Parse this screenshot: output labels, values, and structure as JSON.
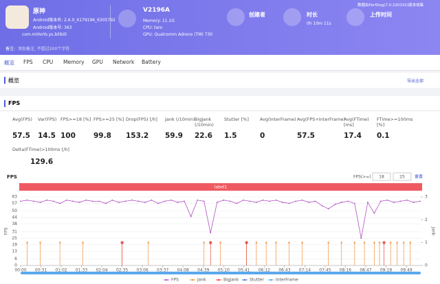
{
  "header": {
    "app_name": "原神",
    "version_name": "Android版本名: 2.6.0_6179196_6305792",
    "version_code": "Android版本号: 363",
    "package": "com.miHoYo.ys.bilibili",
    "device": "V2196A",
    "memory": "Memory: 11.1G",
    "cpu": "CPU: taro",
    "gpu": "GPU: Qualcomm Adreno (TM) 730",
    "creator_label": "创建者",
    "duration_label": "时长",
    "duration": "0h 10m 11s",
    "upload_label": "上传时间",
    "source_note": "数据由PerfDog(7.0.220332)版本收集",
    "note_label": "备注:",
    "note_placeholder": "添加备注, 不超过200个字符"
  },
  "tabs": [
    "概览",
    "FPS",
    "CPU",
    "Memory",
    "GPU",
    "Network",
    "Battery"
  ],
  "overview": {
    "title": "概览",
    "export": "导出全部"
  },
  "fps_section": {
    "title": "FPS",
    "stats": [
      {
        "label": "Avg(FPS)",
        "value": 57.5
      },
      {
        "label": "Var(FPS)",
        "value": 14.5
      },
      {
        "label": "FPS>=18 [%]",
        "value": 100
      },
      {
        "label": "FPS>=25 [%]",
        "value": 99.8
      },
      {
        "label": "Drop(FPS) [/h]",
        "value": 153.2
      },
      {
        "label": "Jank (/10min)",
        "value": 59.9
      },
      {
        "label": "BigJank (/10min)",
        "value": 22.6
      },
      {
        "label": "Stutter [%]",
        "value": 1.5
      },
      {
        "label": "Avg(InterFrame)",
        "value": 0
      },
      {
        "label": "Avg(FPS+InterFrame)",
        "value": 57.5
      },
      {
        "label": "Avg(FTime) [ms]",
        "value": 17.4
      },
      {
        "label": "FTime>=100ms [%]",
        "value": 0.1
      },
      {
        "label": "Delta(FTime)>100ms [/h]",
        "value": 129.6
      }
    ]
  },
  "chart_data": {
    "type": "line",
    "title": "FPS",
    "threshold_label": "FPS(>=)",
    "thresholds": [
      18,
      25
    ],
    "reset": "重置",
    "label_bar": "label1",
    "y_label": "FPS",
    "y2_label": "Jank",
    "xlim": [
      0,
      611
    ],
    "ylim": [
      0,
      63
    ],
    "y2lim": [
      0,
      3
    ],
    "yticks": [
      0,
      6,
      13,
      19,
      25,
      31,
      38,
      44,
      50,
      57,
      63
    ],
    "y2ticks": [
      0,
      1,
      2,
      3
    ],
    "xticks": [
      {
        "value": 0,
        "label": "00:00"
      },
      {
        "value": 31,
        "label": "00:31"
      },
      {
        "value": 62,
        "label": "01:02"
      },
      {
        "value": 93,
        "label": "01:33"
      },
      {
        "value": 124,
        "label": "02:04"
      },
      {
        "value": 155,
        "label": "02:35"
      },
      {
        "value": 186,
        "label": "03:06"
      },
      {
        "value": 217,
        "label": "03:37"
      },
      {
        "value": 248,
        "label": "04:08"
      },
      {
        "value": 279,
        "label": "04:39"
      },
      {
        "value": 310,
        "label": "05:10"
      },
      {
        "value": 341,
        "label": "05:41"
      },
      {
        "value": 372,
        "label": "06:12"
      },
      {
        "value": 403,
        "label": "06:43"
      },
      {
        "value": 434,
        "label": "07:14"
      },
      {
        "value": 465,
        "label": "07:45"
      },
      {
        "value": 496,
        "label": "08:16"
      },
      {
        "value": 527,
        "label": "08:47"
      },
      {
        "value": 558,
        "label": "09:18"
      },
      {
        "value": 589,
        "label": "09:49"
      }
    ],
    "series": [
      {
        "name": "FPS",
        "color": "#b04fc0",
        "x": [
          0,
          10,
          20,
          30,
          40,
          50,
          60,
          70,
          80,
          90,
          100,
          110,
          120,
          130,
          140,
          150,
          160,
          170,
          180,
          190,
          200,
          210,
          220,
          230,
          240,
          250,
          260,
          270,
          280,
          290,
          300,
          310,
          320,
          330,
          340,
          350,
          360,
          370,
          380,
          390,
          400,
          410,
          420,
          430,
          440,
          450,
          460,
          470,
          480,
          490,
          500,
          510,
          520,
          530,
          540,
          550,
          560,
          570,
          580,
          590,
          600,
          610
        ],
        "values": [
          59,
          60,
          59,
          58,
          60,
          59,
          57,
          60,
          59,
          58,
          60,
          59,
          59,
          57,
          60,
          58,
          59,
          60,
          59,
          58,
          60,
          57,
          59,
          60,
          58,
          59,
          45,
          60,
          59,
          30,
          58,
          60,
          59,
          57,
          60,
          59,
          58,
          60,
          59,
          60,
          58,
          57,
          59,
          60,
          58,
          59,
          55,
          52,
          56,
          58,
          59,
          57,
          25,
          58,
          48,
          59,
          60,
          58,
          59,
          60,
          58,
          59
        ]
      },
      {
        "name": "Jank",
        "color": "#f0913a",
        "axis": "y2",
        "x": [
          10,
          30,
          60,
          95,
          155,
          195,
          280,
          305,
          345,
          360,
          375,
          390,
          410,
          430,
          470,
          490,
          510,
          525,
          540,
          548,
          565,
          575,
          585,
          595
        ],
        "values": [
          1,
          1,
          1,
          1,
          1,
          1,
          1,
          1,
          1,
          1,
          1,
          1,
          1,
          1,
          1,
          1,
          1,
          1,
          1,
          1,
          1,
          1,
          1,
          1
        ]
      },
      {
        "name": "BigJank",
        "color": "#e8433f",
        "axis": "y2",
        "x": [
          155,
          290,
          345,
          555
        ],
        "values": [
          1,
          1,
          1,
          1
        ]
      },
      {
        "name": "Stutter",
        "color": "#4a6fd8",
        "axis": "y2",
        "x": [],
        "values": []
      },
      {
        "name": "InterFrame",
        "color": "#49a6e8",
        "x": [],
        "values": []
      }
    ]
  }
}
